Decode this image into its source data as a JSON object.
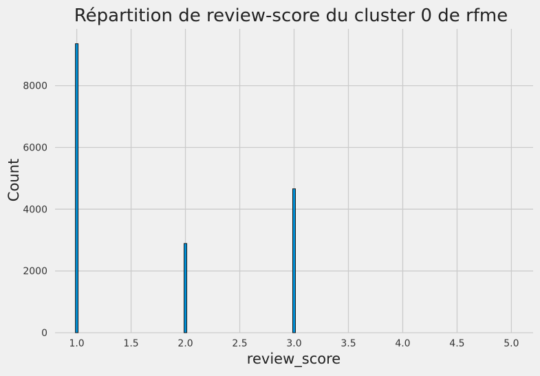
{
  "chart_data": {
    "type": "bar",
    "title": "Répartition de review-score du cluster 0 de rfme",
    "xlabel": "review_score",
    "ylabel": "Count",
    "xlim": [
      0.8,
      5.2
    ],
    "ylim": [
      0,
      9840
    ],
    "xticks": [
      1.0,
      1.5,
      2.0,
      2.5,
      3.0,
      3.5,
      4.0,
      4.5,
      5.0
    ],
    "xtick_labels": [
      "1.0",
      "1.5",
      "2.0",
      "2.5",
      "3.0",
      "3.5",
      "4.0",
      "4.5",
      "5.0"
    ],
    "yticks": [
      0,
      2000,
      4000,
      6000,
      8000
    ],
    "ytick_labels": [
      "0",
      "2000",
      "4000",
      "6000",
      "8000"
    ],
    "bins": [
      {
        "x": 1.0,
        "value": 9360
      },
      {
        "x": 2.0,
        "value": 2890
      },
      {
        "x": 3.0,
        "value": 4660
      }
    ],
    "grid": true,
    "bar_color": "#008fd5",
    "bar_edge_color": "#1a1a1a",
    "background_color": "#f0f0f0",
    "grid_color": "#cbcbcb"
  }
}
